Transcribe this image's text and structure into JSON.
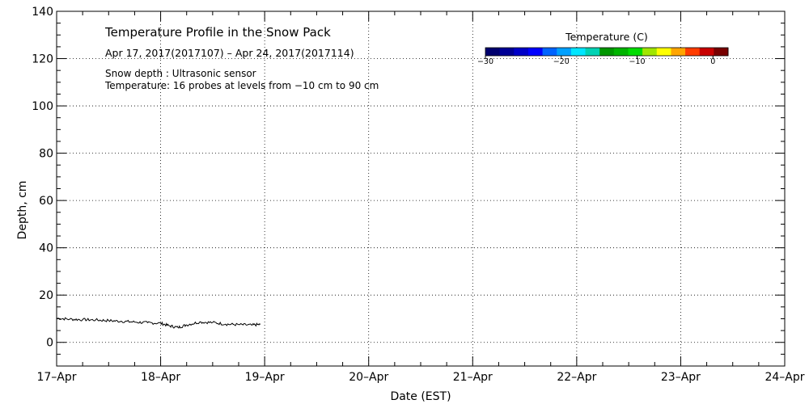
{
  "chart_data": {
    "type": "line",
    "title": "Temperature Profile in the Snow Pack",
    "subtitle": "Apr 17, 2017(2017107) – Apr 24, 2017(2017114)",
    "notes": [
      "Snow depth : Ultrasonic sensor",
      "Temperature: 16 probes at levels from −10 cm to 90 cm"
    ],
    "xlabel": "Date (EST)",
    "ylabel": "Depth, cm",
    "x_tick_labels": [
      "17–Apr",
      "18–Apr",
      "19–Apr",
      "20–Apr",
      "21–Apr",
      "22–Apr",
      "23–Apr",
      "24–Apr"
    ],
    "xlim": [
      "2017-04-17",
      "2017-04-24"
    ],
    "y_ticks": [
      0,
      20,
      40,
      60,
      80,
      100,
      120,
      140
    ],
    "ylim": [
      -10,
      140
    ],
    "grid": true,
    "series": [
      {
        "x": [
          "2017-04-17 00:00",
          "2017-04-17 03:00",
          "2017-04-17 06:00",
          "2017-04-17 09:00",
          "2017-04-17 12:00",
          "2017-04-17 15:00",
          "2017-04-17 18:00",
          "2017-04-17 21:00",
          "2017-04-18 00:00",
          "2017-04-18 02:00",
          "2017-04-18 04:00",
          "2017-04-18 06:00",
          "2017-04-18 09:00",
          "2017-04-18 12:00",
          "2017-04-18 15:00",
          "2017-04-18 18:00",
          "2017-04-18 21:00",
          "2017-04-18 23:00"
        ],
        "values": [
          10.2,
          9.8,
          9.6,
          9.5,
          9.2,
          8.9,
          8.6,
          8.3,
          8.1,
          7.0,
          6.3,
          7.4,
          8.6,
          8.4,
          7.7,
          7.5,
          7.3,
          7.6
        ]
      }
    ],
    "colorbar": {
      "title": "Temperature (C)",
      "tick_labels": [
        "−30",
        "−20",
        "−10",
        "0"
      ],
      "range": [
        -30,
        2
      ],
      "colors": [
        "#00006e",
        "#000095",
        "#0000c8",
        "#0000ff",
        "#0064ff",
        "#00a0ff",
        "#00e6ff",
        "#00d2b4",
        "#009600",
        "#00b400",
        "#00dc00",
        "#a0e600",
        "#ffff00",
        "#ffa500",
        "#ff3c00",
        "#c80000",
        "#780000"
      ]
    }
  }
}
